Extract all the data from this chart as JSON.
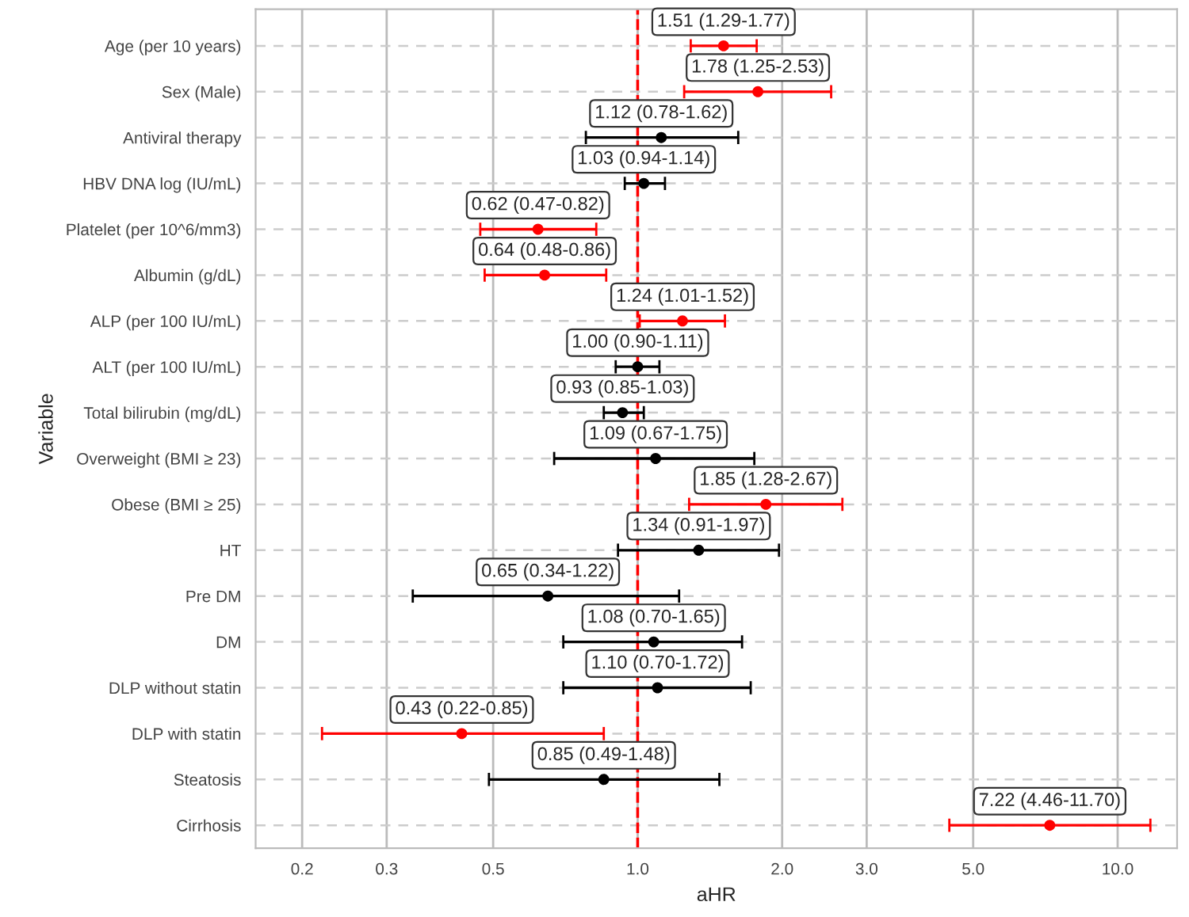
{
  "chart_data": {
    "type": "scatter",
    "orientation": "horizontal",
    "xlabel": "aHR",
    "ylabel": "Variable",
    "categories": [
      "Age (per 10 years)",
      "Sex (Male)",
      "Antiviral therapy",
      "HBV DNA log (IU/mL)",
      "Platelet (per 10^6/mm3)",
      "Albumin (g/dL)",
      "ALP (per 100 IU/mL)",
      "ALT (per 100 IU/mL)",
      "Total bilirubin (mg/dL)",
      "Overweight (BMI ≥ 23)",
      "Obese (BMI ≥ 25)",
      "HT",
      "Pre DM",
      "DM",
      "DLP without statin",
      "DLP with statin",
      "Steatosis",
      "Cirrhosis"
    ],
    "values": [
      1.51,
      1.78,
      1.12,
      1.03,
      0.62,
      0.64,
      1.24,
      1.0,
      0.93,
      1.09,
      1.85,
      1.34,
      0.65,
      1.08,
      1.1,
      0.43,
      0.85,
      7.22
    ],
    "errors": [
      [
        1.29,
        1.77
      ],
      [
        1.25,
        2.53
      ],
      [
        0.78,
        1.62
      ],
      [
        0.94,
        1.14
      ],
      [
        0.47,
        0.82
      ],
      [
        0.48,
        0.86
      ],
      [
        1.01,
        1.52
      ],
      [
        0.9,
        1.11
      ],
      [
        0.85,
        1.03
      ],
      [
        0.67,
        1.75
      ],
      [
        1.28,
        2.67
      ],
      [
        0.91,
        1.97
      ],
      [
        0.34,
        1.22
      ],
      [
        0.7,
        1.65
      ],
      [
        0.7,
        1.72
      ],
      [
        0.22,
        0.85
      ],
      [
        0.49,
        1.48
      ],
      [
        4.46,
        11.7
      ]
    ],
    "colors": [
      "#ff0000",
      "#ff0000",
      "#000000",
      "#000000",
      "#ff0000",
      "#ff0000",
      "#ff0000",
      "#000000",
      "#000000",
      "#000000",
      "#ff0000",
      "#000000",
      "#000000",
      "#000000",
      "#000000",
      "#ff0000",
      "#000000",
      "#ff0000"
    ],
    "value_labels": [
      "1.51 (1.29-1.77)",
      "1.78 (1.25-2.53)",
      "1.12 (0.78-1.62)",
      "1.03 (0.94-1.14)",
      "0.62 (0.47-0.82)",
      "0.64 (0.48-0.86)",
      "1.24 (1.01-1.52)",
      "1.00 (0.90-1.11)",
      "0.93 (0.85-1.03)",
      "1.09 (0.67-1.75)",
      "1.85 (1.28-2.67)",
      "1.34 (0.91-1.97)",
      "0.65 (0.34-1.22)",
      "1.08 (0.70-1.65)",
      "1.10 (0.70-1.72)",
      "0.43 (0.22-0.85)",
      "0.85 (0.49-1.48)",
      "7.22 (4.46-11.70)"
    ],
    "log": "x",
    "xlim": [
      0.16,
      13.3
    ],
    "xticks": [
      0.2,
      0.3,
      0.5,
      {
        "value": 1,
        "label": "1.0"
      },
      {
        "value": 2,
        "label": "2.0"
      },
      {
        "value": 3,
        "label": "3.0"
      },
      {
        "value": 5,
        "label": "5.0"
      },
      {
        "value": 10,
        "label": "10.0"
      }
    ],
    "ref_lines": [
      {
        "axis": "x",
        "value": 1,
        "color": "#ff0000",
        "line_style": "dashed"
      }
    ],
    "grid": true,
    "marker": "circle"
  }
}
